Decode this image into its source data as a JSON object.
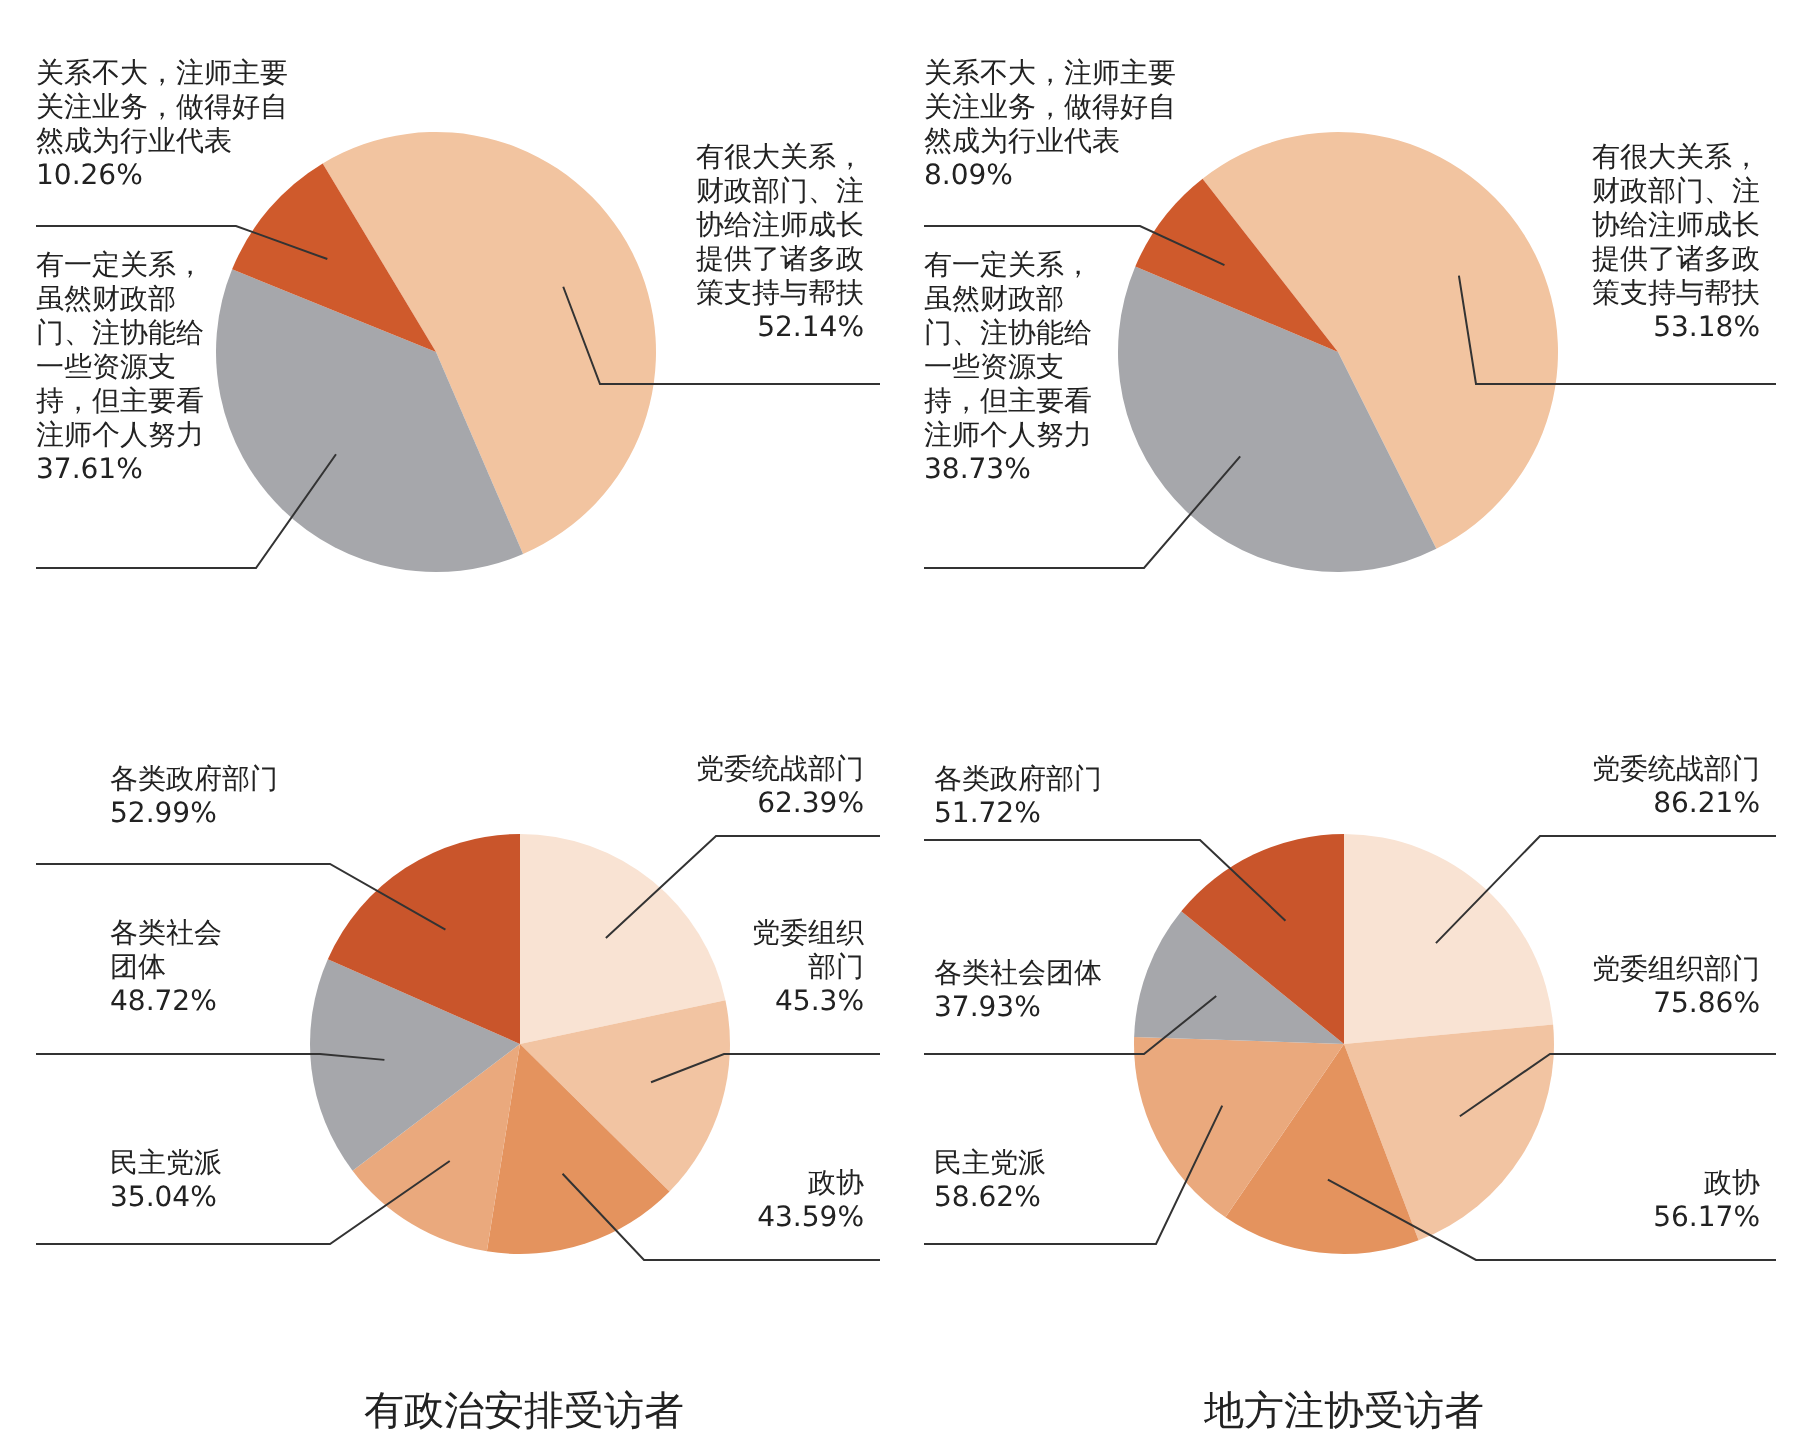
{
  "chart_data": [
    {
      "type": "pie",
      "categories": [
        "有很大关系，财政部门、注协给注师成长提供了诸多政策支持与帮扶",
        "有一定关系，虽然财政部门、注协能给一些资源支持，但主要看注师个人努力",
        "关系不大，注师主要关注业务，做得好自然成为行业代表"
      ],
      "values": [
        52.14,
        37.61,
        10.26
      ],
      "value_labels": [
        "52.14%",
        "37.61%",
        "10.26%"
      ],
      "colors": [
        "#f2c4a0",
        "#a6a7ab",
        "#cf5a2c"
      ]
    },
    {
      "type": "pie",
      "categories": [
        "有很大关系，财政部门、注协给注师成长提供了诸多政策支持与帮扶",
        "有一定关系，虽然财政部门、注协能给一些资源支持，但主要看注师个人努力",
        "关系不大，注师主要关注业务，做得好自然成为行业代表"
      ],
      "values": [
        53.18,
        38.73,
        8.09
      ],
      "value_labels": [
        "53.18%",
        "38.73%",
        "8.09%"
      ],
      "colors": [
        "#f2c4a0",
        "#a6a7ab",
        "#cf5a2c"
      ]
    },
    {
      "type": "pie",
      "title": "有政治安排受访者",
      "categories": [
        "党委统战部门",
        "党委组织部门",
        "政协",
        "民主党派",
        "各类社会团体",
        "各类政府部门"
      ],
      "values": [
        62.39,
        45.3,
        43.59,
        35.04,
        48.72,
        52.99
      ],
      "value_labels": [
        "62.39%",
        "45.3%",
        "43.59%",
        "35.04%",
        "48.72%",
        "52.99%"
      ],
      "colors": [
        "#f9e3d3",
        "#f2c4a2",
        "#e4935e",
        "#eaa97d",
        "#a6a7ab",
        "#c9552b"
      ]
    },
    {
      "type": "pie",
      "title": "地方注协受访者",
      "categories": [
        "党委统战部门",
        "党委组织部门",
        "政协",
        "民主党派",
        "各类社会团体",
        "各类政府部门"
      ],
      "values": [
        86.21,
        75.86,
        56.17,
        58.62,
        37.93,
        51.72
      ],
      "value_labels": [
        "86.21%",
        "75.86%",
        "56.17%",
        "58.62%",
        "37.93%",
        "51.72%"
      ],
      "colors": [
        "#f9e3d3",
        "#f2c4a2",
        "#e4935e",
        "#eaa97d",
        "#a6a7ab",
        "#c9552b"
      ]
    }
  ]
}
